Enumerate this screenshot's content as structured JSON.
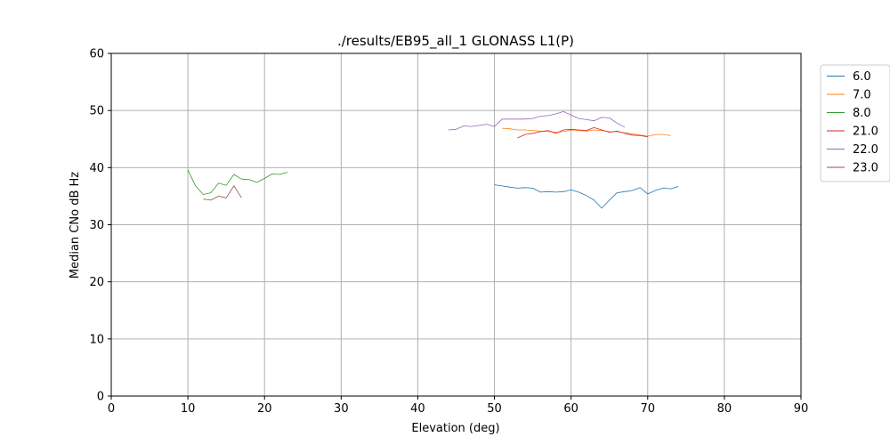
{
  "chart_data": {
    "type": "line",
    "title": "./results/EB95_all_1 GLONASS L1(P)",
    "xlabel": "Elevation (deg)",
    "ylabel": "Median CNo dB Hz",
    "xlim": [
      0,
      90
    ],
    "ylim": [
      0,
      60
    ],
    "xticks": [
      0,
      10,
      20,
      30,
      40,
      50,
      60,
      70,
      80,
      90
    ],
    "yticks": [
      0,
      10,
      20,
      30,
      40,
      50,
      60
    ],
    "grid": true,
    "legend_position": "outside-top-right",
    "series": [
      {
        "name": "6.0",
        "color": "#1f77b4",
        "x": [
          50,
          51,
          52,
          53,
          54,
          55,
          56,
          57,
          58,
          59,
          60,
          61,
          62,
          63,
          64,
          65,
          66,
          67,
          68,
          69,
          70,
          71,
          72,
          73,
          74
        ],
        "y": [
          37.0,
          36.8,
          36.6,
          36.4,
          36.5,
          36.4,
          35.7,
          35.8,
          35.7,
          35.8,
          36.1,
          35.7,
          35.1,
          34.3,
          32.9,
          34.3,
          35.6,
          35.8,
          36.0,
          36.5,
          35.4,
          36.0,
          36.4,
          36.3,
          36.7
        ]
      },
      {
        "name": "7.0",
        "color": "#ff7f0e",
        "x": [
          51,
          52,
          53,
          54,
          55,
          56,
          57,
          58,
          59,
          60,
          61,
          62,
          63,
          64,
          65,
          66,
          67,
          68,
          69,
          70,
          71,
          72,
          73
        ],
        "y": [
          46.9,
          46.8,
          46.6,
          46.6,
          46.5,
          46.4,
          46.3,
          46.2,
          46.3,
          46.6,
          46.5,
          46.4,
          46.6,
          46.5,
          46.3,
          46.3,
          46.1,
          45.9,
          45.7,
          45.5,
          45.8,
          45.8,
          45.6
        ]
      },
      {
        "name": "8.0",
        "color": "#2ca02c",
        "x": [
          10,
          11,
          12,
          13,
          14,
          15,
          16,
          17,
          18,
          19,
          20,
          21,
          22,
          23
        ],
        "y": [
          39.6,
          36.8,
          35.3,
          35.6,
          37.3,
          36.9,
          38.8,
          38.0,
          37.9,
          37.4,
          38.1,
          38.9,
          38.8,
          39.2
        ]
      },
      {
        "name": "21.0",
        "color": "#d62728",
        "x": [
          53,
          54,
          55,
          56,
          57,
          58,
          59,
          60,
          61,
          62,
          63,
          64,
          65,
          66,
          67,
          68,
          69,
          70
        ],
        "y": [
          45.2,
          45.8,
          46.0,
          46.3,
          46.5,
          46.0,
          46.6,
          46.7,
          46.6,
          46.5,
          47.0,
          46.6,
          46.2,
          46.4,
          46.0,
          45.7,
          45.6,
          45.4
        ]
      },
      {
        "name": "22.0",
        "color": "#9467bd",
        "x": [
          44,
          45,
          46,
          47,
          48,
          49,
          50,
          51,
          52,
          53,
          54,
          55,
          56,
          57,
          58,
          59,
          60,
          61,
          62,
          63,
          64,
          65,
          66,
          67
        ],
        "y": [
          46.6,
          46.7,
          47.3,
          47.2,
          47.4,
          47.6,
          47.2,
          48.5,
          48.5,
          48.5,
          48.5,
          48.6,
          49.0,
          49.1,
          49.4,
          49.8,
          49.2,
          48.6,
          48.4,
          48.2,
          48.8,
          48.7,
          47.8,
          47.1
        ]
      },
      {
        "name": "23.0",
        "color": "#8c564b",
        "x": [
          12,
          13,
          14,
          15,
          16,
          17
        ],
        "y": [
          34.5,
          34.3,
          35.0,
          34.7,
          36.8,
          34.7
        ]
      }
    ]
  }
}
